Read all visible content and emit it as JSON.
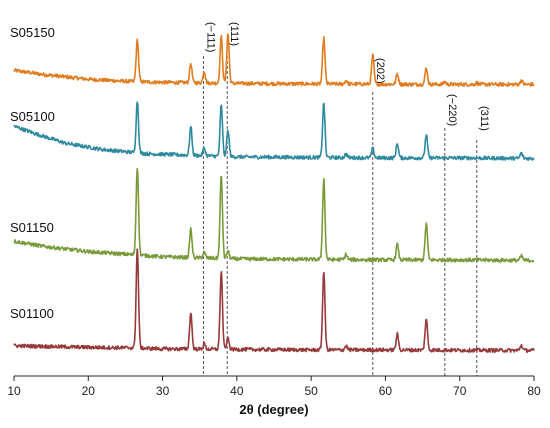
{
  "chart_data": {
    "type": "line",
    "title": "",
    "xlabel": "2θ (degree)",
    "ylabel": "",
    "xlim": [
      10,
      80
    ],
    "x_ticks": [
      10,
      20,
      30,
      40,
      50,
      60,
      70,
      80
    ],
    "x_tick_labels": [
      "10",
      "20",
      "30",
      "40",
      "50",
      "60",
      "70",
      "80"
    ],
    "y_axis_visible": false,
    "grid": false,
    "legend": "none",
    "reference_lines": [
      {
        "x": 35.5,
        "label": "(−111)"
      },
      {
        "x": 38.7,
        "label": "(111)"
      },
      {
        "x": 58.3,
        "label": "(202)"
      },
      {
        "x": 68.0,
        "label": "(−220)"
      },
      {
        "x": 72.3,
        "label": "(311)"
      }
    ],
    "series": [
      {
        "name": "S05150",
        "color": "#E07B1E",
        "baseline": [
          [
            10,
            0.3
          ],
          [
            14,
            0.22
          ],
          [
            20,
            0.13
          ],
          [
            25,
            0.09
          ],
          [
            30,
            0.07
          ],
          [
            40,
            0.05
          ],
          [
            50,
            0.04
          ],
          [
            60,
            0.035
          ],
          [
            70,
            0.03
          ],
          [
            80,
            0.03
          ]
        ],
        "peaks": [
          {
            "x": 26.6,
            "h": 0.8
          },
          {
            "x": 33.8,
            "h": 0.37
          },
          {
            "x": 35.6,
            "h": 0.23
          },
          {
            "x": 37.9,
            "h": 0.9
          },
          {
            "x": 38.8,
            "h": 0.95
          },
          {
            "x": 51.7,
            "h": 0.88
          },
          {
            "x": 54.7,
            "h": 0.07
          },
          {
            "x": 58.3,
            "h": 0.55
          },
          {
            "x": 61.6,
            "h": 0.2
          },
          {
            "x": 65.5,
            "h": 0.32
          },
          {
            "x": 68.0,
            "h": 0.05
          },
          {
            "x": 72.3,
            "h": 0.03
          },
          {
            "x": 78.3,
            "h": 0.08
          }
        ]
      },
      {
        "name": "S05100",
        "color": "#2F8AA0",
        "baseline": [
          [
            10,
            0.65
          ],
          [
            13,
            0.5
          ],
          [
            17,
            0.32
          ],
          [
            22,
            0.2
          ],
          [
            28,
            0.12
          ],
          [
            40,
            0.06
          ],
          [
            50,
            0.05
          ],
          [
            60,
            0.04
          ],
          [
            70,
            0.04
          ],
          [
            80,
            0.03
          ]
        ],
        "peaks": [
          {
            "x": 26.6,
            "h": 1.0
          },
          {
            "x": 33.8,
            "h": 0.55
          },
          {
            "x": 35.6,
            "h": 0.15
          },
          {
            "x": 37.9,
            "h": 0.98
          },
          {
            "x": 38.8,
            "h": 0.5
          },
          {
            "x": 51.7,
            "h": 1.05
          },
          {
            "x": 54.7,
            "h": 0.07
          },
          {
            "x": 58.3,
            "h": 0.18
          },
          {
            "x": 61.6,
            "h": 0.28
          },
          {
            "x": 65.5,
            "h": 0.45
          },
          {
            "x": 78.3,
            "h": 0.1
          }
        ]
      },
      {
        "name": "S01150",
        "color": "#7A9A3A",
        "baseline": [
          [
            10,
            0.4
          ],
          [
            14,
            0.3
          ],
          [
            20,
            0.2
          ],
          [
            25,
            0.15
          ],
          [
            30,
            0.1
          ],
          [
            40,
            0.06
          ],
          [
            50,
            0.05
          ],
          [
            60,
            0.04
          ],
          [
            70,
            0.04
          ],
          [
            80,
            0.03
          ]
        ],
        "peaks": [
          {
            "x": 26.6,
            "h": 1.7
          },
          {
            "x": 33.8,
            "h": 0.55
          },
          {
            "x": 35.6,
            "h": 0.1
          },
          {
            "x": 37.9,
            "h": 1.6
          },
          {
            "x": 38.8,
            "h": 0.15
          },
          {
            "x": 51.7,
            "h": 1.55
          },
          {
            "x": 54.7,
            "h": 0.1
          },
          {
            "x": 61.6,
            "h": 0.3
          },
          {
            "x": 65.5,
            "h": 0.7
          },
          {
            "x": 78.3,
            "h": 0.08
          }
        ]
      },
      {
        "name": "S01100",
        "color": "#963A3A",
        "baseline": [
          [
            10,
            0.12
          ],
          [
            20,
            0.09
          ],
          [
            26,
            0.08
          ],
          [
            30,
            0.06
          ],
          [
            40,
            0.05
          ],
          [
            50,
            0.04
          ],
          [
            60,
            0.04
          ],
          [
            70,
            0.035
          ],
          [
            80,
            0.03
          ]
        ],
        "peaks": [
          {
            "x": 26.6,
            "h": 1.9
          },
          {
            "x": 33.8,
            "h": 0.7
          },
          {
            "x": 35.6,
            "h": 0.1
          },
          {
            "x": 37.9,
            "h": 1.5
          },
          {
            "x": 38.8,
            "h": 0.2
          },
          {
            "x": 51.7,
            "h": 1.5
          },
          {
            "x": 54.7,
            "h": 0.08
          },
          {
            "x": 61.6,
            "h": 0.3
          },
          {
            "x": 65.5,
            "h": 0.6
          },
          {
            "x": 78.3,
            "h": 0.1
          }
        ]
      }
    ]
  }
}
